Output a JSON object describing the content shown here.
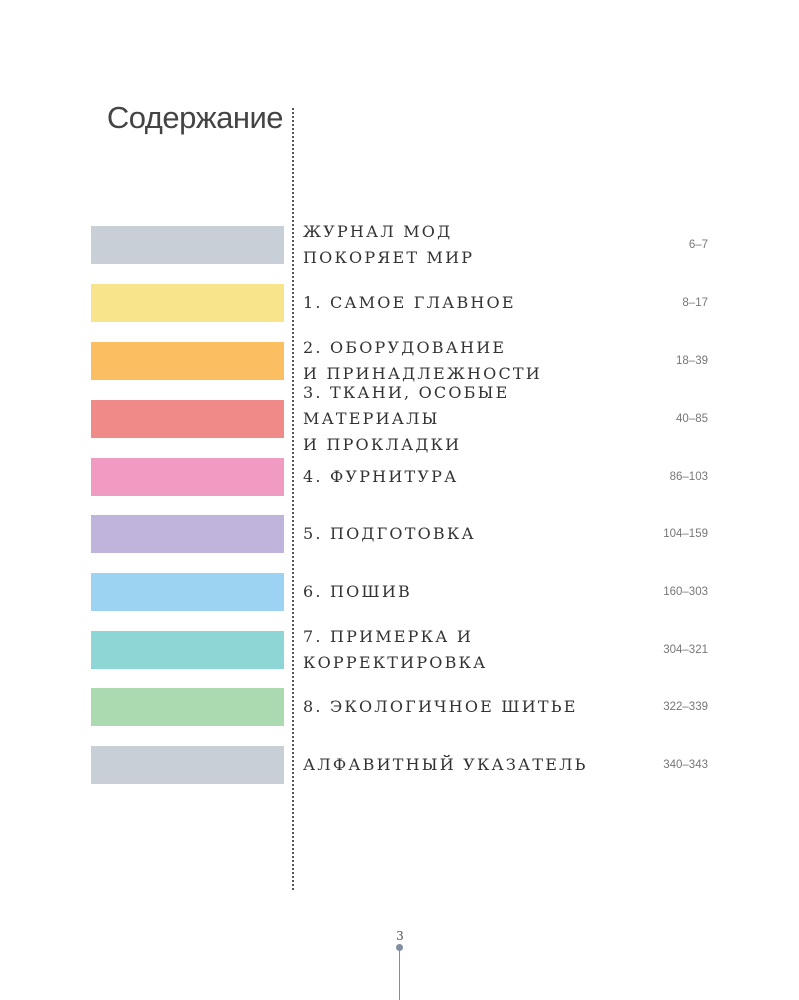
{
  "title": "Содержание",
  "entries": [
    {
      "title": "ЖУРНАЛ МОД\nПОКОРЯЕТ МИР",
      "pages": "6–7",
      "color": "#c8cfd6"
    },
    {
      "title": "1. САМОЕ ГЛАВНОЕ",
      "pages": "8–17",
      "color": "#f8e48a"
    },
    {
      "title": "2. ОБОРУДОВАНИЕ\nИ ПРИНАДЛЕЖНОСТИ",
      "pages": "18–39",
      "color": "#fbbf62"
    },
    {
      "title": "3. ТКАНИ, ОСОБЫЕ МАТЕРИАЛЫ\nИ ПРОКЛАДКИ",
      "pages": "40–85",
      "color": "#f08a88"
    },
    {
      "title": "4. ФУРНИТУРА",
      "pages": "86–103",
      "color": "#f29bc2"
    },
    {
      "title": "5. ПОДГОТОВКА",
      "pages": "104–159",
      "color": "#c0b4dc"
    },
    {
      "title": "6. ПОШИВ",
      "pages": "160–303",
      "color": "#9cd2f2"
    },
    {
      "title": "7. ПРИМЕРКА И КОРРЕКТИРОВКА",
      "pages": "304–321",
      "color": "#8ed6d6"
    },
    {
      "title": "8. ЭКОЛОГИЧНОЕ ШИТЬЕ",
      "pages": "322–339",
      "color": "#acdab0"
    },
    {
      "title": "АЛФАВИТНЫЙ УКАЗАТЕЛЬ",
      "pages": "340–343",
      "color": "#c8cfd6"
    }
  ],
  "page_number": "3"
}
